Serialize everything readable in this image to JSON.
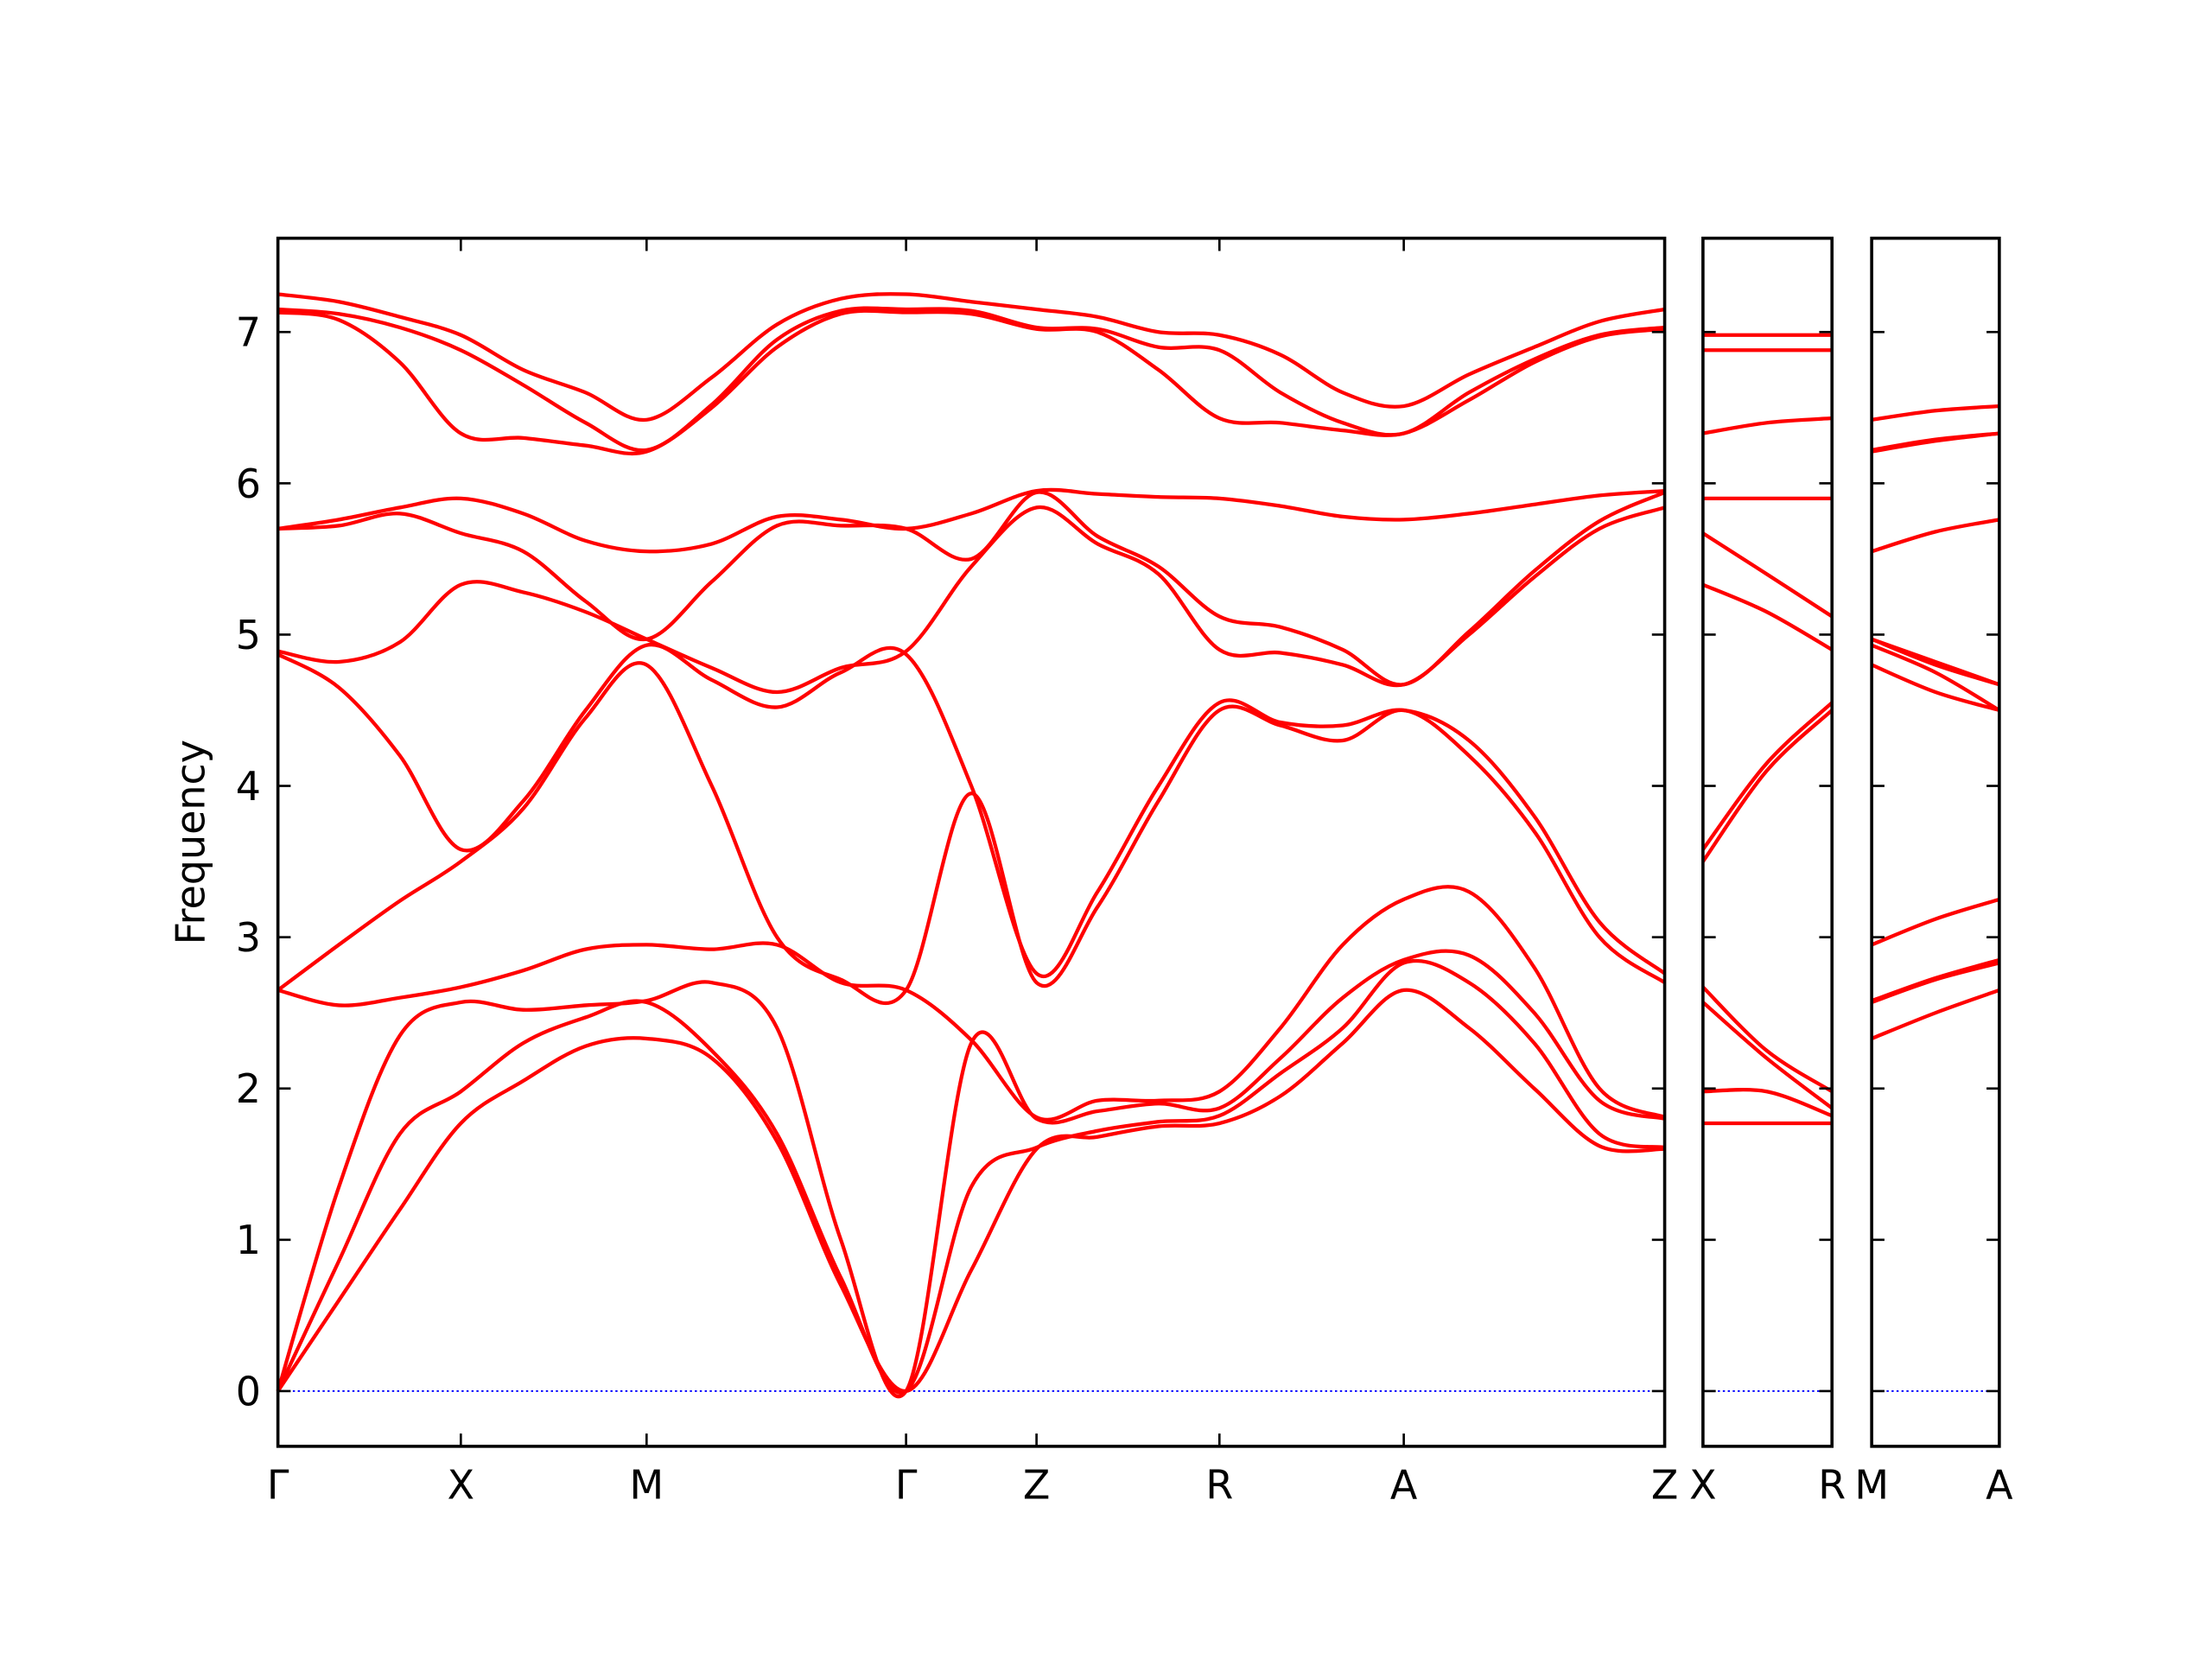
{
  "chart_data": [
    {
      "type": "line",
      "y_label": "Frequency",
      "line_color": "#ff0000",
      "zero_line_color": "#0000ff",
      "show_ytick_labels": true,
      "x": [
        0,
        0.43,
        0.86,
        1.29,
        1.73,
        2.17,
        2.6,
        3.06,
        3.52,
        3.97,
        4.43,
        4.89,
        5.35,
        5.78,
        6.21,
        6.64,
        7.07,
        7.51,
        7.94,
        8.4,
        8.86,
        9.32,
        9.78
      ],
      "xlim": [
        0,
        9.78
      ],
      "xticks": [
        {
          "value": 0,
          "label": "Γ"
        },
        {
          "value": 1.29,
          "label": "X"
        },
        {
          "value": 2.6,
          "label": "M"
        },
        {
          "value": 4.43,
          "label": "Γ"
        },
        {
          "value": 5.35,
          "label": "Z"
        },
        {
          "value": 6.64,
          "label": "R"
        },
        {
          "value": 7.94,
          "label": "A"
        },
        {
          "value": 9.78,
          "label": "Z"
        }
      ],
      "ylim": [
        -0.365,
        7.62
      ],
      "yticks": [
        0,
        1,
        2,
        3,
        4,
        5,
        6,
        7
      ],
      "series": [
        {
          "values": [
            0,
            0.6,
            1.2,
            1.77,
            2.05,
            2.28,
            2.33,
            2.2,
            1.65,
            0.7,
            0,
            0.8,
            1.6,
            1.68,
            1.75,
            1.77,
            1.95,
            2.3,
            2.65,
            2.4,
            2.0,
            1.62,
            1.6
          ]
        },
        {
          "values": [
            0,
            0.86,
            1.7,
            1.98,
            2.3,
            2.47,
            2.57,
            2.25,
            1.7,
            0.75,
            0,
            1.35,
            1.61,
            1.72,
            1.78,
            1.82,
            2.1,
            2.4,
            2.83,
            2.7,
            2.3,
            1.7,
            1.61
          ]
        },
        {
          "values": [
            0,
            1.35,
            2.35,
            2.57,
            2.52,
            2.55,
            2.58,
            2.7,
            2.4,
            1.0,
            0,
            2.3,
            1.8,
            1.85,
            1.9,
            1.87,
            2.2,
            2.6,
            2.85,
            2.88,
            2.5,
            1.92,
            1.8
          ]
        },
        {
          "values": [
            2.65,
            2.55,
            2.6,
            2.67,
            2.78,
            2.92,
            2.95,
            2.92,
            2.95,
            2.7,
            2.65,
            2.32,
            1.81,
            1.92,
            1.92,
            1.98,
            2.4,
            2.95,
            3.25,
            3.3,
            2.8,
            2.0,
            1.81
          ]
        },
        {
          "values": [
            2.65,
            2.95,
            3.24,
            3.5,
            3.85,
            4.45,
            4.8,
            4.0,
            3.0,
            2.72,
            2.65,
            3.95,
            2.7,
            3.2,
            3.9,
            4.5,
            4.4,
            4.3,
            4.5,
            4.2,
            3.7,
            3.0,
            2.7
          ]
        },
        {
          "values": [
            4.87,
            4.65,
            4.2,
            3.58,
            3.9,
            4.5,
            4.93,
            4.7,
            4.52,
            4.75,
            4.87,
            4.0,
            2.76,
            3.3,
            4.0,
            4.55,
            4.42,
            4.4,
            4.5,
            4.3,
            3.8,
            3.1,
            2.76
          ]
        },
        {
          "values": [
            4.89,
            4.82,
            4.95,
            5.33,
            5.28,
            5.15,
            4.97,
            4.78,
            4.62,
            4.78,
            4.89,
            5.45,
            5.84,
            5.6,
            5.4,
            4.9,
            4.88,
            4.8,
            4.67,
            5.0,
            5.38,
            5.7,
            5.84
          ]
        },
        {
          "values": [
            5.7,
            5.72,
            5.8,
            5.67,
            5.55,
            5.22,
            4.97,
            5.35,
            5.72,
            5.72,
            5.7,
            5.5,
            5.94,
            5.65,
            5.45,
            5.12,
            5.05,
            4.9,
            4.67,
            5.02,
            5.42,
            5.75,
            5.94
          ]
        },
        {
          "values": [
            5.7,
            5.76,
            5.84,
            5.9,
            5.8,
            5.62,
            5.55,
            5.6,
            5.78,
            5.76,
            5.7,
            5.8,
            5.95,
            5.93,
            5.91,
            5.9,
            5.85,
            5.78,
            5.76,
            5.8,
            5.86,
            5.92,
            5.95
          ]
        },
        {
          "values": [
            7.13,
            7.08,
            6.8,
            6.33,
            6.3,
            6.25,
            6.21,
            6.5,
            6.9,
            7.12,
            7.13,
            7.12,
            7.02,
            7.0,
            6.75,
            6.43,
            6.4,
            6.35,
            6.33,
            6.55,
            6.8,
            6.97,
            7.02
          ]
        },
        {
          "values": [
            7.15,
            7.12,
            7.03,
            6.88,
            6.65,
            6.4,
            6.22,
            6.52,
            6.95,
            7.14,
            7.15,
            7.14,
            7.03,
            7.02,
            6.9,
            6.88,
            6.6,
            6.4,
            6.33,
            6.6,
            6.82,
            6.98,
            7.03
          ]
        },
        {
          "values": [
            7.25,
            7.2,
            7.1,
            6.98,
            6.75,
            6.6,
            6.42,
            6.7,
            7.05,
            7.22,
            7.25,
            7.2,
            7.15,
            7.1,
            7.0,
            6.98,
            6.85,
            6.6,
            6.51,
            6.72,
            6.9,
            7.07,
            7.15
          ]
        }
      ]
    },
    {
      "type": "line",
      "line_color": "#ff0000",
      "zero_line_color": "#0000ff",
      "show_ytick_labels": false,
      "x": [
        0,
        0.45,
        0.91
      ],
      "xlim": [
        0,
        0.91
      ],
      "xticks": [
        {
          "value": 0,
          "label": "X"
        },
        {
          "value": 0.91,
          "label": "R"
        }
      ],
      "ylim": [
        -0.365,
        7.62
      ],
      "yticks": [
        0,
        1,
        2,
        3,
        4,
        5,
        6,
        7
      ],
      "series": [
        {
          "values": [
            1.77,
            1.77,
            1.77
          ]
        },
        {
          "values": [
            1.98,
            1.98,
            1.82
          ]
        },
        {
          "values": [
            2.57,
            2.2,
            1.87
          ]
        },
        {
          "values": [
            2.67,
            2.25,
            1.98
          ]
        },
        {
          "values": [
            3.5,
            4.1,
            4.5
          ]
        },
        {
          "values": [
            3.58,
            4.15,
            4.55
          ]
        },
        {
          "values": [
            5.33,
            5.15,
            4.9
          ]
        },
        {
          "values": [
            5.67,
            5.4,
            5.12
          ]
        },
        {
          "values": [
            5.9,
            5.9,
            5.9
          ]
        },
        {
          "values": [
            6.33,
            6.4,
            6.43
          ]
        },
        {
          "values": [
            6.88,
            6.88,
            6.88
          ]
        },
        {
          "values": [
            6.98,
            6.98,
            6.98
          ]
        }
      ]
    },
    {
      "type": "line",
      "line_color": "#ff0000",
      "zero_line_color": "#0000ff",
      "show_ytick_labels": false,
      "x": [
        0,
        0.45,
        0.9
      ],
      "xlim": [
        0,
        0.9
      ],
      "xticks": [
        {
          "value": 0,
          "label": "M"
        },
        {
          "value": 0.9,
          "label": "A"
        }
      ],
      "ylim": [
        -0.365,
        7.62
      ],
      "yticks": [
        0,
        1,
        2,
        3,
        4,
        5,
        6,
        7
      ],
      "series": [
        {
          "values": [
            2.33,
            2.5,
            2.65
          ]
        },
        {
          "values": [
            2.57,
            2.72,
            2.83
          ]
        },
        {
          "values": [
            2.58,
            2.73,
            2.85
          ]
        },
        {
          "values": [
            2.95,
            3.12,
            3.25
          ]
        },
        {
          "values": [
            4.8,
            4.62,
            4.5
          ]
        },
        {
          "values": [
            4.93,
            4.75,
            4.5
          ]
        },
        {
          "values": [
            4.97,
            4.8,
            4.67
          ]
        },
        {
          "values": [
            4.97,
            4.82,
            4.67
          ]
        },
        {
          "values": [
            5.55,
            5.68,
            5.76
          ]
        },
        {
          "values": [
            6.21,
            6.28,
            6.33
          ]
        },
        {
          "values": [
            6.22,
            6.29,
            6.33
          ]
        },
        {
          "values": [
            6.42,
            6.48,
            6.51
          ]
        }
      ]
    }
  ]
}
